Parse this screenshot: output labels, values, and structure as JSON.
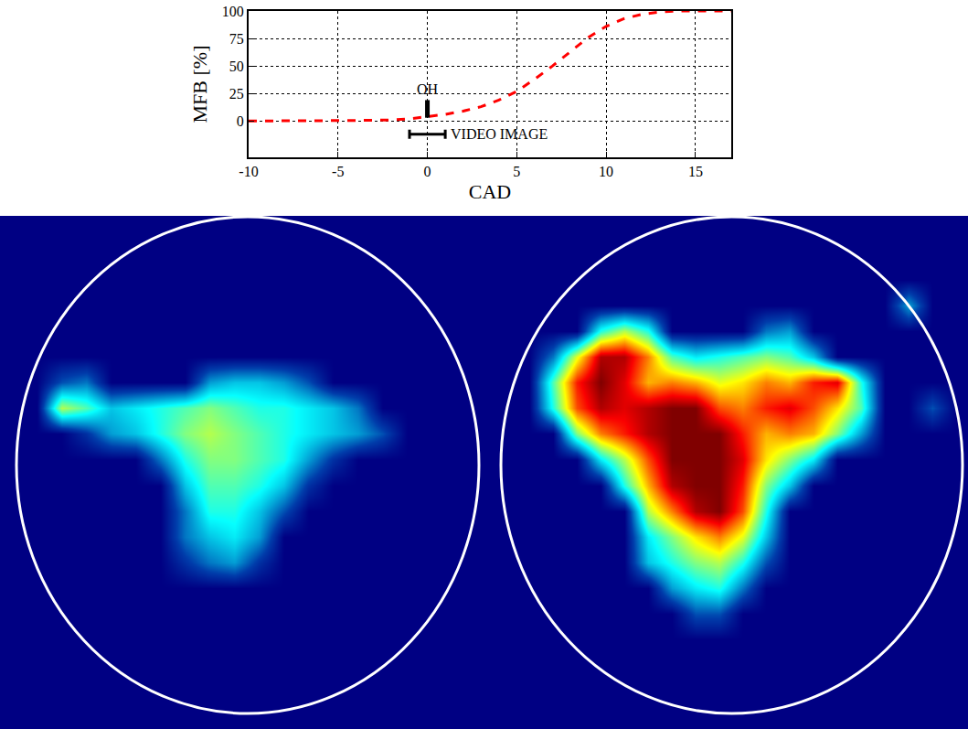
{
  "chart_data": [
    {
      "type": "line",
      "x_label": "CAD",
      "y_label": "MFB [%]",
      "x": [
        -10,
        -8,
        -6,
        -4,
        -2,
        -1,
        0,
        1,
        2,
        3,
        4,
        5,
        6,
        7,
        8,
        9,
        10,
        11,
        12,
        13,
        14,
        15,
        16,
        17
      ],
      "values": [
        0,
        0,
        0,
        0.5,
        1,
        2,
        4,
        6,
        9,
        13,
        19,
        27,
        38,
        50,
        63,
        76,
        86,
        93,
        97,
        99,
        100,
        100,
        100,
        100
      ],
      "color": "#ff0000",
      "line_style": "dashed",
      "xlim": [
        -10,
        17
      ],
      "xticks": [
        -10,
        -5,
        0,
        5,
        10,
        15
      ],
      "ylim": [
        -33,
        100
      ],
      "yticks": [
        0,
        25,
        50,
        75,
        100
      ],
      "grid": true,
      "markers": [
        {
          "label": "OH",
          "x": 0,
          "y": [
            3,
            19
          ]
        }
      ],
      "intervals": [
        {
          "label": "VIDEO IMAGE",
          "x": [
            -1,
            1
          ],
          "y": -12
        }
      ]
    },
    {
      "type": "heatmap",
      "tick_labels": false,
      "zlim": [
        0,
        100
      ],
      "cells": [
        [
          0,
          0,
          0,
          0,
          0,
          0,
          0,
          0,
          0,
          0,
          0,
          0,
          0,
          0,
          0,
          0,
          0,
          0,
          0,
          0
        ],
        [
          0,
          0,
          0,
          0,
          0,
          0,
          0,
          0,
          0,
          0,
          0,
          0,
          0,
          0,
          0,
          0,
          0,
          0,
          0,
          0
        ],
        [
          0,
          0,
          0,
          0,
          0,
          0,
          0,
          0,
          0,
          0,
          0,
          0,
          0,
          0,
          0,
          0,
          0,
          0,
          0,
          0
        ],
        [
          0,
          0,
          0,
          0,
          0,
          0,
          0,
          0,
          0,
          0,
          0,
          0,
          0,
          0,
          0,
          0,
          0,
          0,
          0,
          0
        ],
        [
          0,
          0,
          0,
          0,
          0,
          0,
          0,
          0,
          0,
          0,
          0,
          0,
          0,
          0,
          0,
          0,
          0,
          0,
          0,
          0
        ],
        [
          0,
          0,
          0,
          0,
          0,
          0,
          0,
          0,
          0,
          0,
          0,
          0,
          0,
          0,
          0,
          0,
          0,
          0,
          0,
          0
        ],
        [
          0,
          0,
          15,
          20,
          0,
          0,
          0,
          0,
          25,
          30,
          30,
          25,
          15,
          0,
          0,
          0,
          0,
          0,
          0,
          0
        ],
        [
          0,
          0,
          55,
          45,
          30,
          35,
          40,
          45,
          50,
          45,
          40,
          40,
          35,
          30,
          20,
          0,
          0,
          0,
          0,
          0
        ],
        [
          0,
          0,
          0,
          10,
          25,
          30,
          40,
          50,
          55,
          50,
          45,
          40,
          35,
          30,
          25,
          15,
          0,
          0,
          0,
          0
        ],
        [
          0,
          0,
          0,
          0,
          0,
          0,
          20,
          40,
          50,
          50,
          45,
          40,
          25,
          10,
          0,
          0,
          0,
          0,
          0,
          0
        ],
        [
          0,
          0,
          0,
          0,
          0,
          0,
          0,
          30,
          45,
          45,
          40,
          30,
          10,
          0,
          0,
          0,
          0,
          0,
          0,
          0
        ],
        [
          0,
          0,
          0,
          0,
          0,
          0,
          0,
          20,
          40,
          40,
          30,
          15,
          0,
          0,
          0,
          0,
          0,
          0,
          0,
          0
        ],
        [
          0,
          0,
          0,
          0,
          0,
          0,
          0,
          20,
          30,
          35,
          25,
          0,
          0,
          0,
          0,
          0,
          0,
          0,
          0,
          0
        ],
        [
          0,
          0,
          0,
          0,
          0,
          0,
          0,
          10,
          20,
          25,
          10,
          0,
          0,
          0,
          0,
          0,
          0,
          0,
          0,
          0
        ],
        [
          0,
          0,
          0,
          0,
          0,
          0,
          0,
          0,
          0,
          0,
          0,
          0,
          0,
          0,
          0,
          0,
          0,
          0,
          0,
          0
        ],
        [
          0,
          0,
          0,
          0,
          0,
          0,
          0,
          0,
          0,
          0,
          0,
          0,
          0,
          0,
          0,
          0,
          0,
          0,
          0,
          0
        ],
        [
          0,
          0,
          0,
          0,
          0,
          0,
          0,
          0,
          0,
          0,
          0,
          0,
          0,
          0,
          0,
          0,
          0,
          0,
          0,
          0
        ],
        [
          0,
          0,
          0,
          0,
          0,
          0,
          0,
          0,
          0,
          0,
          0,
          0,
          0,
          0,
          0,
          0,
          0,
          0,
          0,
          0
        ],
        [
          0,
          0,
          0,
          0,
          0,
          0,
          0,
          0,
          0,
          0,
          0,
          0,
          0,
          0,
          0,
          0,
          0,
          0,
          0,
          0
        ],
        [
          0,
          0,
          0,
          0,
          0,
          0,
          0,
          0,
          0,
          0,
          0,
          0,
          0,
          0,
          0,
          0,
          0,
          0,
          0,
          0
        ]
      ]
    },
    {
      "type": "heatmap",
      "tick_labels": false,
      "zlim": [
        0,
        100
      ],
      "cells": [
        [
          0,
          0,
          0,
          0,
          0,
          0,
          0,
          0,
          0,
          0,
          0,
          0,
          0,
          0,
          0,
          0,
          0,
          0,
          0,
          0
        ],
        [
          0,
          0,
          0,
          0,
          0,
          0,
          0,
          0,
          0,
          0,
          0,
          0,
          0,
          0,
          0,
          0,
          0,
          0,
          0,
          0
        ],
        [
          0,
          0,
          0,
          0,
          0,
          0,
          0,
          0,
          0,
          0,
          0,
          0,
          0,
          0,
          0,
          0,
          0,
          0,
          0,
          0
        ],
        [
          0,
          0,
          0,
          0,
          0,
          0,
          0,
          0,
          0,
          0,
          0,
          0,
          0,
          0,
          0,
          0,
          0,
          25,
          0,
          0
        ],
        [
          0,
          0,
          0,
          0,
          40,
          55,
          40,
          0,
          0,
          0,
          0,
          20,
          25,
          0,
          0,
          0,
          0,
          0,
          0,
          0
        ],
        [
          0,
          0,
          20,
          60,
          95,
          95,
          75,
          45,
          35,
          40,
          45,
          50,
          45,
          30,
          0,
          0,
          0,
          0,
          0,
          0
        ],
        [
          0,
          0,
          45,
          85,
          100,
          90,
          70,
          75,
          70,
          60,
          65,
          75,
          70,
          85,
          90,
          40,
          0,
          0,
          0,
          0
        ],
        [
          0,
          0,
          40,
          80,
          95,
          90,
          95,
          100,
          100,
          80,
          75,
          85,
          90,
          80,
          65,
          45,
          0,
          0,
          15,
          0
        ],
        [
          0,
          0,
          0,
          50,
          75,
          85,
          95,
          100,
          100,
          100,
          85,
          70,
          75,
          70,
          50,
          25,
          0,
          0,
          0,
          0
        ],
        [
          0,
          0,
          0,
          0,
          35,
          55,
          80,
          100,
          100,
          100,
          90,
          65,
          50,
          35,
          0,
          0,
          0,
          0,
          0,
          0
        ],
        [
          0,
          0,
          0,
          0,
          0,
          40,
          70,
          95,
          100,
          100,
          85,
          50,
          30,
          0,
          0,
          0,
          0,
          0,
          0,
          0
        ],
        [
          0,
          0,
          0,
          0,
          0,
          0,
          55,
          75,
          95,
          100,
          80,
          40,
          0,
          0,
          0,
          0,
          0,
          0,
          0,
          0
        ],
        [
          0,
          0,
          0,
          0,
          0,
          0,
          35,
          50,
          65,
          75,
          60,
          30,
          0,
          0,
          0,
          0,
          0,
          0,
          0,
          0
        ],
        [
          0,
          0,
          0,
          0,
          0,
          0,
          30,
          40,
          50,
          55,
          40,
          15,
          0,
          0,
          0,
          0,
          0,
          0,
          0,
          0
        ],
        [
          0,
          0,
          0,
          0,
          0,
          0,
          0,
          25,
          35,
          40,
          20,
          0,
          0,
          0,
          0,
          0,
          0,
          0,
          0,
          0
        ],
        [
          0,
          0,
          0,
          0,
          0,
          0,
          0,
          0,
          15,
          15,
          0,
          0,
          0,
          0,
          0,
          0,
          0,
          0,
          0,
          0
        ],
        [
          0,
          0,
          0,
          0,
          0,
          0,
          0,
          0,
          0,
          0,
          0,
          0,
          0,
          0,
          0,
          0,
          0,
          0,
          0,
          0
        ],
        [
          0,
          0,
          0,
          0,
          0,
          0,
          0,
          0,
          0,
          0,
          0,
          0,
          0,
          0,
          0,
          0,
          0,
          0,
          0,
          0
        ],
        [
          0,
          0,
          0,
          0,
          0,
          0,
          0,
          0,
          0,
          0,
          0,
          0,
          0,
          0,
          0,
          0,
          0,
          0,
          0,
          0
        ],
        [
          0,
          0,
          0,
          0,
          0,
          0,
          0,
          0,
          0,
          0,
          0,
          0,
          0,
          0,
          0,
          0,
          0,
          0,
          0,
          0
        ]
      ]
    }
  ]
}
